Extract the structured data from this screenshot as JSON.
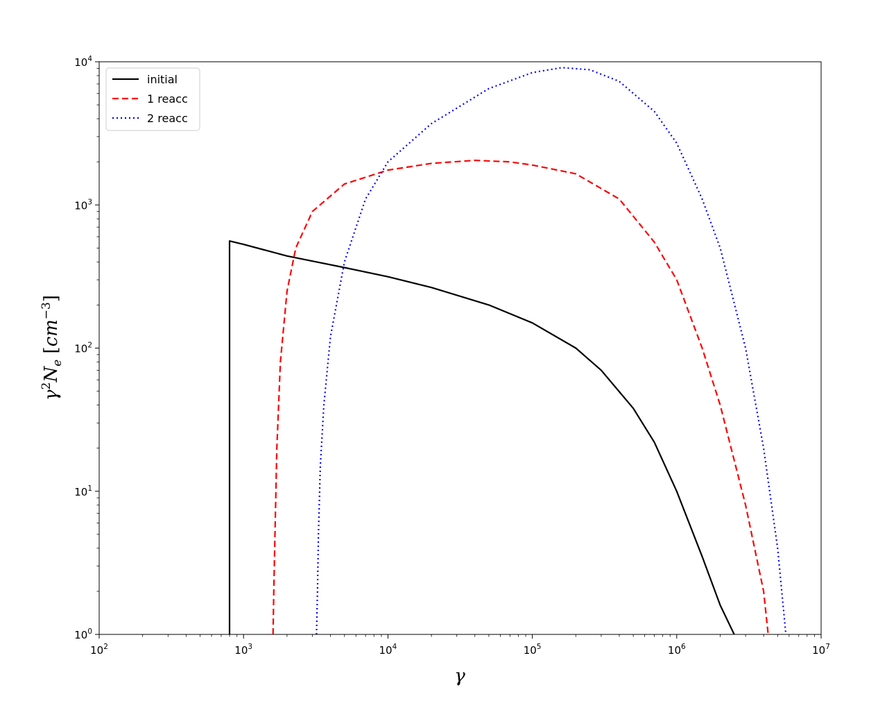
{
  "chart_data": {
    "type": "line",
    "title": "",
    "xlabel": "γ",
    "ylabel": "γ²N_e [cm⁻³]",
    "xscale": "log",
    "yscale": "log",
    "xlim": [
      100,
      10000000
    ],
    "ylim": [
      1,
      10000
    ],
    "grid": false,
    "legend_position": "top-left",
    "x_ticks": [
      {
        "value": 100,
        "base": "10",
        "exp": "2"
      },
      {
        "value": 1000,
        "base": "10",
        "exp": "3"
      },
      {
        "value": 10000,
        "base": "10",
        "exp": "4"
      },
      {
        "value": 100000,
        "base": "10",
        "exp": "5"
      },
      {
        "value": 1000000,
        "base": "10",
        "exp": "6"
      },
      {
        "value": 10000000,
        "base": "10",
        "exp": "7"
      }
    ],
    "y_ticks": [
      {
        "value": 1,
        "base": "10",
        "exp": "0"
      },
      {
        "value": 10,
        "base": "10",
        "exp": "1"
      },
      {
        "value": 100,
        "base": "10",
        "exp": "2"
      },
      {
        "value": 1000,
        "base": "10",
        "exp": "3"
      },
      {
        "value": 10000,
        "base": "10",
        "exp": "4"
      }
    ],
    "series": [
      {
        "name": "initial",
        "color": "#000000",
        "style": "solid",
        "x": [
          800,
          800,
          1000,
          2000,
          5000,
          10000,
          20000,
          50000,
          100000,
          200000,
          300000,
          500000,
          700000,
          1000000,
          1500000,
          2000000,
          2500000
        ],
        "y": [
          1,
          560,
          530,
          440,
          365,
          315,
          265,
          200,
          150,
          100,
          70,
          38,
          22,
          10,
          3.5,
          1.6,
          1.0
        ]
      },
      {
        "name": "1 reacc",
        "color": "#ff0000",
        "style": "dashed",
        "x": [
          1600,
          1620,
          1650,
          1700,
          1800,
          2000,
          2300,
          3000,
          5000,
          10000,
          20000,
          40000,
          70000,
          100000,
          200000,
          400000,
          700000,
          1000000,
          1500000,
          2000000,
          3000000,
          4000000,
          4300000
        ],
        "y": [
          1,
          2,
          5,
          20,
          80,
          250,
          500,
          900,
          1400,
          1750,
          1950,
          2050,
          2000,
          1900,
          1650,
          1100,
          550,
          300,
          100,
          40,
          8,
          2,
          1
        ]
      },
      {
        "name": "2 reacc",
        "color": "#0000ff",
        "style": "dotted",
        "x": [
          3200,
          3250,
          3300,
          3400,
          3600,
          4000,
          5000,
          7000,
          10000,
          20000,
          50000,
          100000,
          160000,
          250000,
          400000,
          700000,
          1000000,
          1500000,
          2000000,
          3000000,
          4000000,
          5000000,
          5700000
        ],
        "y": [
          1,
          2,
          5,
          15,
          40,
          120,
          400,
          1100,
          2000,
          3700,
          6500,
          8400,
          9100,
          8800,
          7300,
          4500,
          2700,
          1100,
          500,
          100,
          20,
          4,
          1
        ]
      }
    ]
  }
}
